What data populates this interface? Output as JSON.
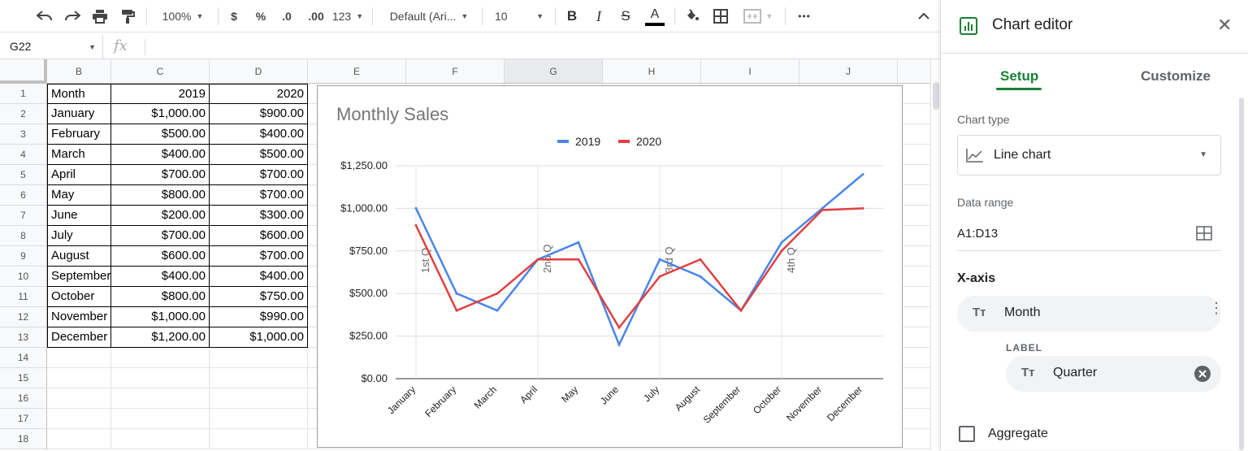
{
  "toolbar": {
    "zoom": "100%",
    "currency": "$",
    "percent": "%",
    "dec_decrease": ".0",
    "dec_increase": ".00",
    "format_123": "123",
    "font": "Default (Ari...",
    "font_size": "10",
    "bold": "B",
    "italic": "I",
    "strike": "S",
    "text_color_letter": "A",
    "more": "•••"
  },
  "formula_bar": {
    "cell_ref": "G22",
    "fx": "fx"
  },
  "columns": [
    "B",
    "C",
    "D",
    "E",
    "F",
    "G",
    "H",
    "I",
    "J"
  ],
  "rows": [
    "1",
    "2",
    "3",
    "4",
    "5",
    "6",
    "7",
    "8",
    "9",
    "10",
    "11",
    "12",
    "13",
    "14",
    "15",
    "16",
    "17",
    "18"
  ],
  "table": {
    "headers": [
      "Month",
      "2019",
      "2020"
    ],
    "rows": [
      [
        "January",
        "$1,000.00",
        "$900.00"
      ],
      [
        "February",
        "$500.00",
        "$400.00"
      ],
      [
        "March",
        "$400.00",
        "$500.00"
      ],
      [
        "April",
        "$700.00",
        "$700.00"
      ],
      [
        "May",
        "$800.00",
        "$700.00"
      ],
      [
        "June",
        "$200.00",
        "$300.00"
      ],
      [
        "July",
        "$700.00",
        "$600.00"
      ],
      [
        "August",
        "$600.00",
        "$700.00"
      ],
      [
        "September",
        "$400.00",
        "$400.00"
      ],
      [
        "October",
        "$800.00",
        "$750.00"
      ],
      [
        "November",
        "$1,000.00",
        "$990.00"
      ],
      [
        "December",
        "$1,200.00",
        "$1,000.00"
      ]
    ]
  },
  "chart_data": {
    "type": "line",
    "title": "Monthly Sales",
    "categories": [
      "January",
      "February",
      "March",
      "April",
      "May",
      "June",
      "July",
      "August",
      "September",
      "October",
      "November",
      "December"
    ],
    "series": [
      {
        "name": "2019",
        "color": "#4a86e8",
        "values": [
          1000,
          500,
          400,
          700,
          800,
          200,
          700,
          600,
          400,
          800,
          1000,
          1200
        ]
      },
      {
        "name": "2020",
        "color": "#e04040",
        "values": [
          900,
          400,
          500,
          700,
          700,
          300,
          600,
          700,
          400,
          750,
          990,
          1000
        ]
      }
    ],
    "ylim": [
      0,
      1250
    ],
    "yticks": [
      "$0.00",
      "$250.00",
      "$500.00",
      "$750.00",
      "$1,000.00",
      "$1,250.00"
    ],
    "annotations": [
      {
        "label": "1st Q",
        "category": "January"
      },
      {
        "label": "2nd Q",
        "category": "April"
      },
      {
        "label": "3rd Q",
        "category": "July"
      },
      {
        "label": "4th Q",
        "category": "October"
      }
    ],
    "legend": "top",
    "grid": true
  },
  "editor": {
    "title": "Chart editor",
    "tabs": [
      "Setup",
      "Customize"
    ],
    "chart_type_label": "Chart type",
    "chart_type_value": "Line chart",
    "data_range_label": "Data range",
    "data_range_value": "A1:D13",
    "x_axis_label": "X-axis",
    "x_axis_value": "Month",
    "sub_label": "LABEL",
    "label_value": "Quarter",
    "aggregate_label": "Aggregate",
    "chip_icon": "Tт",
    "accent": "#188038"
  }
}
